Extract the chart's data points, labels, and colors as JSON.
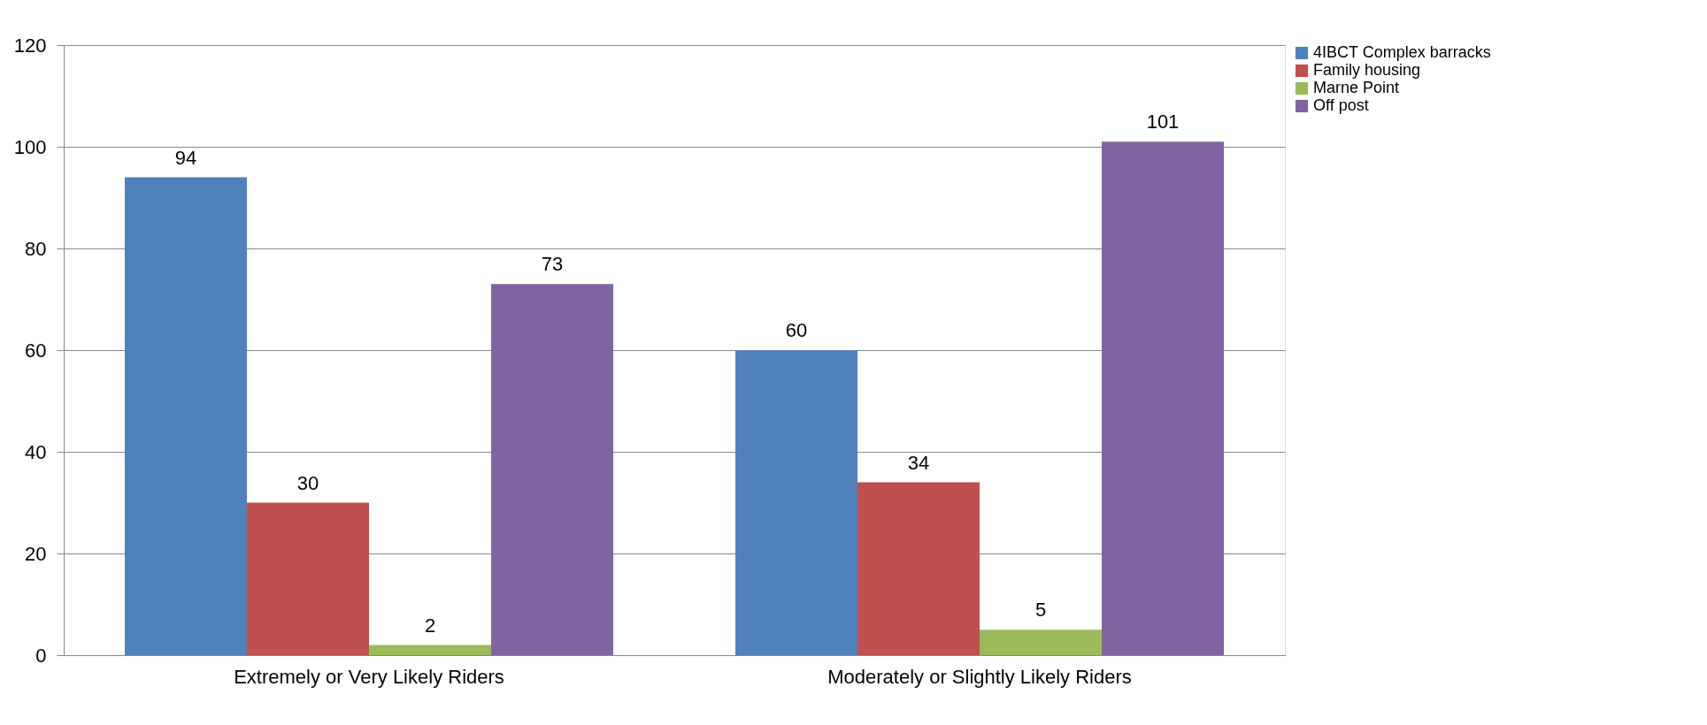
{
  "chart_data": {
    "type": "bar",
    "categories": [
      "Extremely or Very Likely Riders",
      "Moderately or Slightly  Likely Riders"
    ],
    "series": [
      {
        "name": "4IBCT Complex barracks",
        "color": "#4f81bd",
        "values": [
          94,
          60
        ]
      },
      {
        "name": "Family housing",
        "color": "#c0504d",
        "values": [
          30,
          34
        ]
      },
      {
        "name": "Marne Point",
        "color": "#9bbb59",
        "values": [
          2,
          5
        ]
      },
      {
        "name": "Off post",
        "color": "#8064a2",
        "values": [
          73,
          101
        ]
      }
    ],
    "ylim": [
      0,
      120
    ],
    "yticks": [
      0,
      20,
      40,
      60,
      80,
      100,
      120
    ],
    "grid": "y",
    "legend": "right",
    "data_labels": true
  }
}
